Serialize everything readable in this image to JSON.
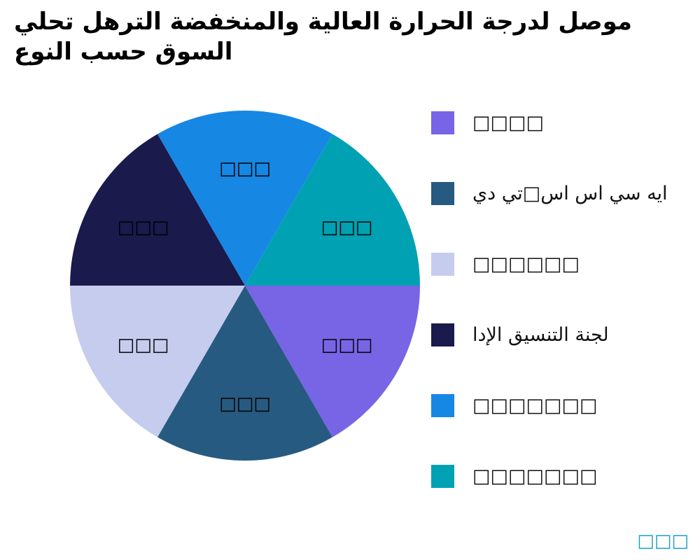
{
  "page": {
    "background": "#ffffff"
  },
  "title": {
    "line1": "موصل لدرجة الحرارة العالية والمنخفضة الترهل تحلي",
    "line2": "السوق حسب النوع"
  },
  "chart_data": {
    "type": "pie",
    "title": "موصل لدرجة الحرارة العالية والمنخفضة الترهل تحلي السوق حسب النوع",
    "legend_position": "right",
    "units": "percent",
    "slices": [
      {
        "legend_label": "□□□□",
        "slice_label": "□□□",
        "value": 16.7,
        "color": "#7765E6",
        "start_angle_deg": 300,
        "end_angle_deg": 360
      },
      {
        "legend_label": "ايه سي اس اس□تي دي",
        "slice_label": "□□□",
        "value": 16.7,
        "color": "#275A80",
        "start_angle_deg": 240,
        "end_angle_deg": 300
      },
      {
        "legend_label": "□□□□□□",
        "slice_label": "□□□",
        "value": 16.7,
        "color": "#C6CCEE",
        "start_angle_deg": 180,
        "end_angle_deg": 240
      },
      {
        "legend_label": "لجنة التنسيق الإدا",
        "slice_label": "□□□",
        "value": 16.7,
        "color": "#1A1A4D",
        "start_angle_deg": 120,
        "end_angle_deg": 180
      },
      {
        "legend_label": "□□□□□□□",
        "slice_label": "□□□",
        "value": 16.7,
        "color": "#1787E4",
        "start_angle_deg": 60,
        "end_angle_deg": 120
      },
      {
        "legend_label": "□□□□□□□",
        "slice_label": "□□□",
        "value": 16.7,
        "color": "#00A1B2",
        "start_angle_deg": 0,
        "end_angle_deg": 60
      }
    ]
  },
  "footer": {
    "text": "□□□",
    "color": "#1C9FC9"
  }
}
